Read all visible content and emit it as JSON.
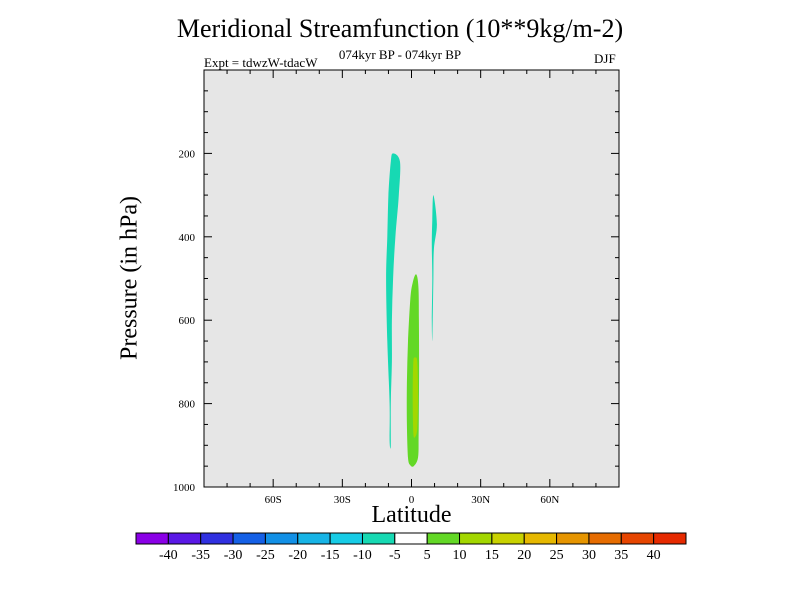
{
  "title": "Meridional Streamfunction (10**9kg/m-2)",
  "subtitle_center": "074kyr BP - 074kyr BP",
  "subtitle_left": "Expt = tdwzW-tdacW",
  "subtitle_right": "DJF",
  "chart_data": {
    "type": "contour",
    "xlabel": "Latitude",
    "ylabel": "Pressure (in hPa)",
    "xlim": [
      -90,
      90
    ],
    "ylim": [
      1000,
      0
    ],
    "x_ticks": [
      {
        "value": -60,
        "label": "60S"
      },
      {
        "value": -30,
        "label": "30S"
      },
      {
        "value": 0,
        "label": "0"
      },
      {
        "value": 30,
        "label": "30N"
      },
      {
        "value": 60,
        "label": "60N"
      }
    ],
    "y_ticks": [
      {
        "value": 200,
        "label": "200"
      },
      {
        "value": 400,
        "label": "400"
      },
      {
        "value": 600,
        "label": "600"
      },
      {
        "value": 800,
        "label": "800"
      },
      {
        "value": 1000,
        "label": "1000"
      }
    ],
    "background_color": "#e6e6e6",
    "regions": [
      {
        "level": "-10 to -5",
        "color": "#17d9b3",
        "points": [
          [
            -8,
            200
          ],
          [
            -5,
            220
          ],
          [
            -5.5,
            300
          ],
          [
            -7,
            400
          ],
          [
            -8,
            500
          ],
          [
            -8.5,
            600
          ],
          [
            -8.5,
            700
          ],
          [
            -9,
            800
          ],
          [
            -9,
            900
          ],
          [
            -9.5,
            890
          ],
          [
            -9.5,
            800
          ],
          [
            -10.5,
            650
          ],
          [
            -11,
            500
          ],
          [
            -10.5,
            400
          ],
          [
            -10,
            300
          ],
          [
            -9,
            220
          ]
        ]
      },
      {
        "level": "-10 to -5",
        "color": "#17d9b3",
        "points": [
          [
            9.5,
            300
          ],
          [
            11,
            370
          ],
          [
            9.7,
            430
          ],
          [
            9.5,
            500
          ],
          [
            9.2,
            600
          ],
          [
            9,
            650
          ],
          [
            8.8,
            600
          ],
          [
            9,
            500
          ],
          [
            8.8,
            420
          ],
          [
            9,
            360
          ]
        ]
      },
      {
        "level": "5 to 10",
        "color": "#63d826",
        "points": [
          [
            2,
            490
          ],
          [
            3,
            520
          ],
          [
            3.2,
            600
          ],
          [
            3.3,
            700
          ],
          [
            3.2,
            800
          ],
          [
            3.1,
            880
          ],
          [
            2.8,
            930
          ],
          [
            1,
            950
          ],
          [
            -0.5,
            948
          ],
          [
            -1.5,
            930
          ],
          [
            -2,
            850
          ],
          [
            -2,
            750
          ],
          [
            -1.5,
            650
          ],
          [
            -0.5,
            550
          ],
          [
            0.5,
            510
          ]
        ]
      },
      {
        "level": "10 to 15",
        "color": "#a3d700",
        "points": [
          [
            1.5,
            690
          ],
          [
            2.5,
            700
          ],
          [
            2.8,
            780
          ],
          [
            2.5,
            860
          ],
          [
            1.5,
            880
          ],
          [
            0.8,
            870
          ],
          [
            0.5,
            780
          ],
          [
            0.8,
            700
          ]
        ]
      }
    ],
    "colorbar": {
      "levels": [
        "-40",
        "-35",
        "-30",
        "-25",
        "-20",
        "-15",
        "-10",
        "-5",
        "5",
        "10",
        "15",
        "20",
        "25",
        "30",
        "35",
        "40"
      ],
      "colors": [
        "#8a00e6",
        "#5a18e6",
        "#3030e0",
        "#1560e6",
        "#1290e6",
        "#17b4e6",
        "#17cce6",
        "#17d9b3",
        "#ffffff",
        "#63d826",
        "#a3d700",
        "#c9d200",
        "#e6b800",
        "#e69500",
        "#e66c00",
        "#e64500",
        "#e62a00"
      ]
    }
  }
}
